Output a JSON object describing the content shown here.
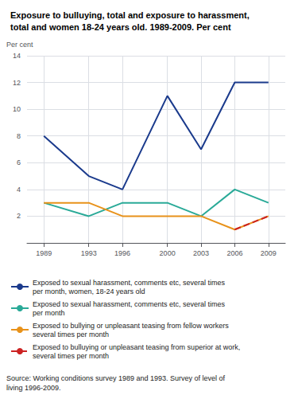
{
  "chart_data": {
    "type": "line",
    "title": "Exposure to bulluying, total and exposure to harassment,\ntotal and women 18-24 years old. 1989-2009. Per cent",
    "y_label": "Per cent",
    "x": [
      1989,
      1993,
      1996,
      2000,
      2003,
      2006,
      2009
    ],
    "series": [
      {
        "name": "Exposed to sexual harassment, comments etc, several times\nper month, women, 18-24 years old",
        "values": [
          8,
          5,
          4,
          11,
          7,
          12,
          12
        ],
        "color": "#1a3a8c",
        "line_style": "solid"
      },
      {
        "name": "Exposed to sexual harassment, comments etc, several times\nper month",
        "values": [
          3,
          2,
          3,
          3,
          2,
          4,
          3
        ],
        "color": "#2aaa98",
        "line_style": "solid"
      },
      {
        "name": "Exposed to bullying or unpleasant teasing from fellow workers\nseveral times per month",
        "values": [
          3,
          3,
          2,
          2,
          2,
          1,
          2
        ],
        "color": "#e8921a",
        "line_style": "solid"
      },
      {
        "name": "Exposed to bulluying or unpleasant teasing from superior at work,\nseveral times per month",
        "values": [
          null,
          null,
          null,
          null,
          null,
          1,
          2
        ],
        "color": "#cc2222",
        "line_style": "dashed"
      }
    ],
    "xlim": [
      1987.5,
      2010.5
    ],
    "xticks": [
      1989,
      1993,
      1996,
      2000,
      2003,
      2006,
      2009
    ],
    "ylim": [
      0,
      14
    ],
    "yticks": [
      2,
      4,
      6,
      8,
      10,
      12,
      14
    ],
    "grid": true,
    "legend": "bottom",
    "annotations": [
      "Source: Working conditions survey 1989 and 1993. Survey of level of\nliving 1996-2009."
    ]
  }
}
